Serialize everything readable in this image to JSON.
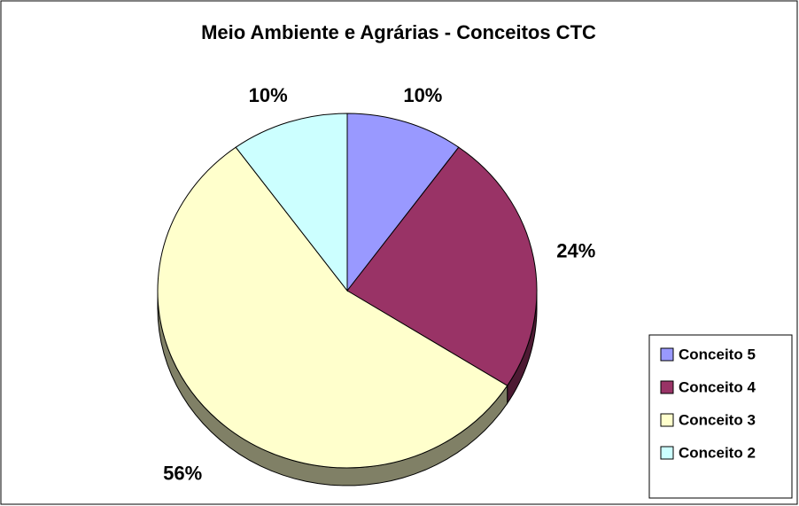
{
  "chart_data": {
    "type": "pie",
    "title": "Meio Ambiente e Agrárias - Conceitos CTC",
    "categories": [
      "Conceito 5",
      "Conceito 4",
      "Conceito 3",
      "Conceito 2"
    ],
    "values": [
      10,
      24,
      56,
      10
    ],
    "value_labels": [
      "10%",
      "24%",
      "56%",
      "10%"
    ],
    "colors": [
      "#9999ff",
      "#993366",
      "#ffffcc",
      "#ccffff"
    ],
    "legend": "right"
  }
}
